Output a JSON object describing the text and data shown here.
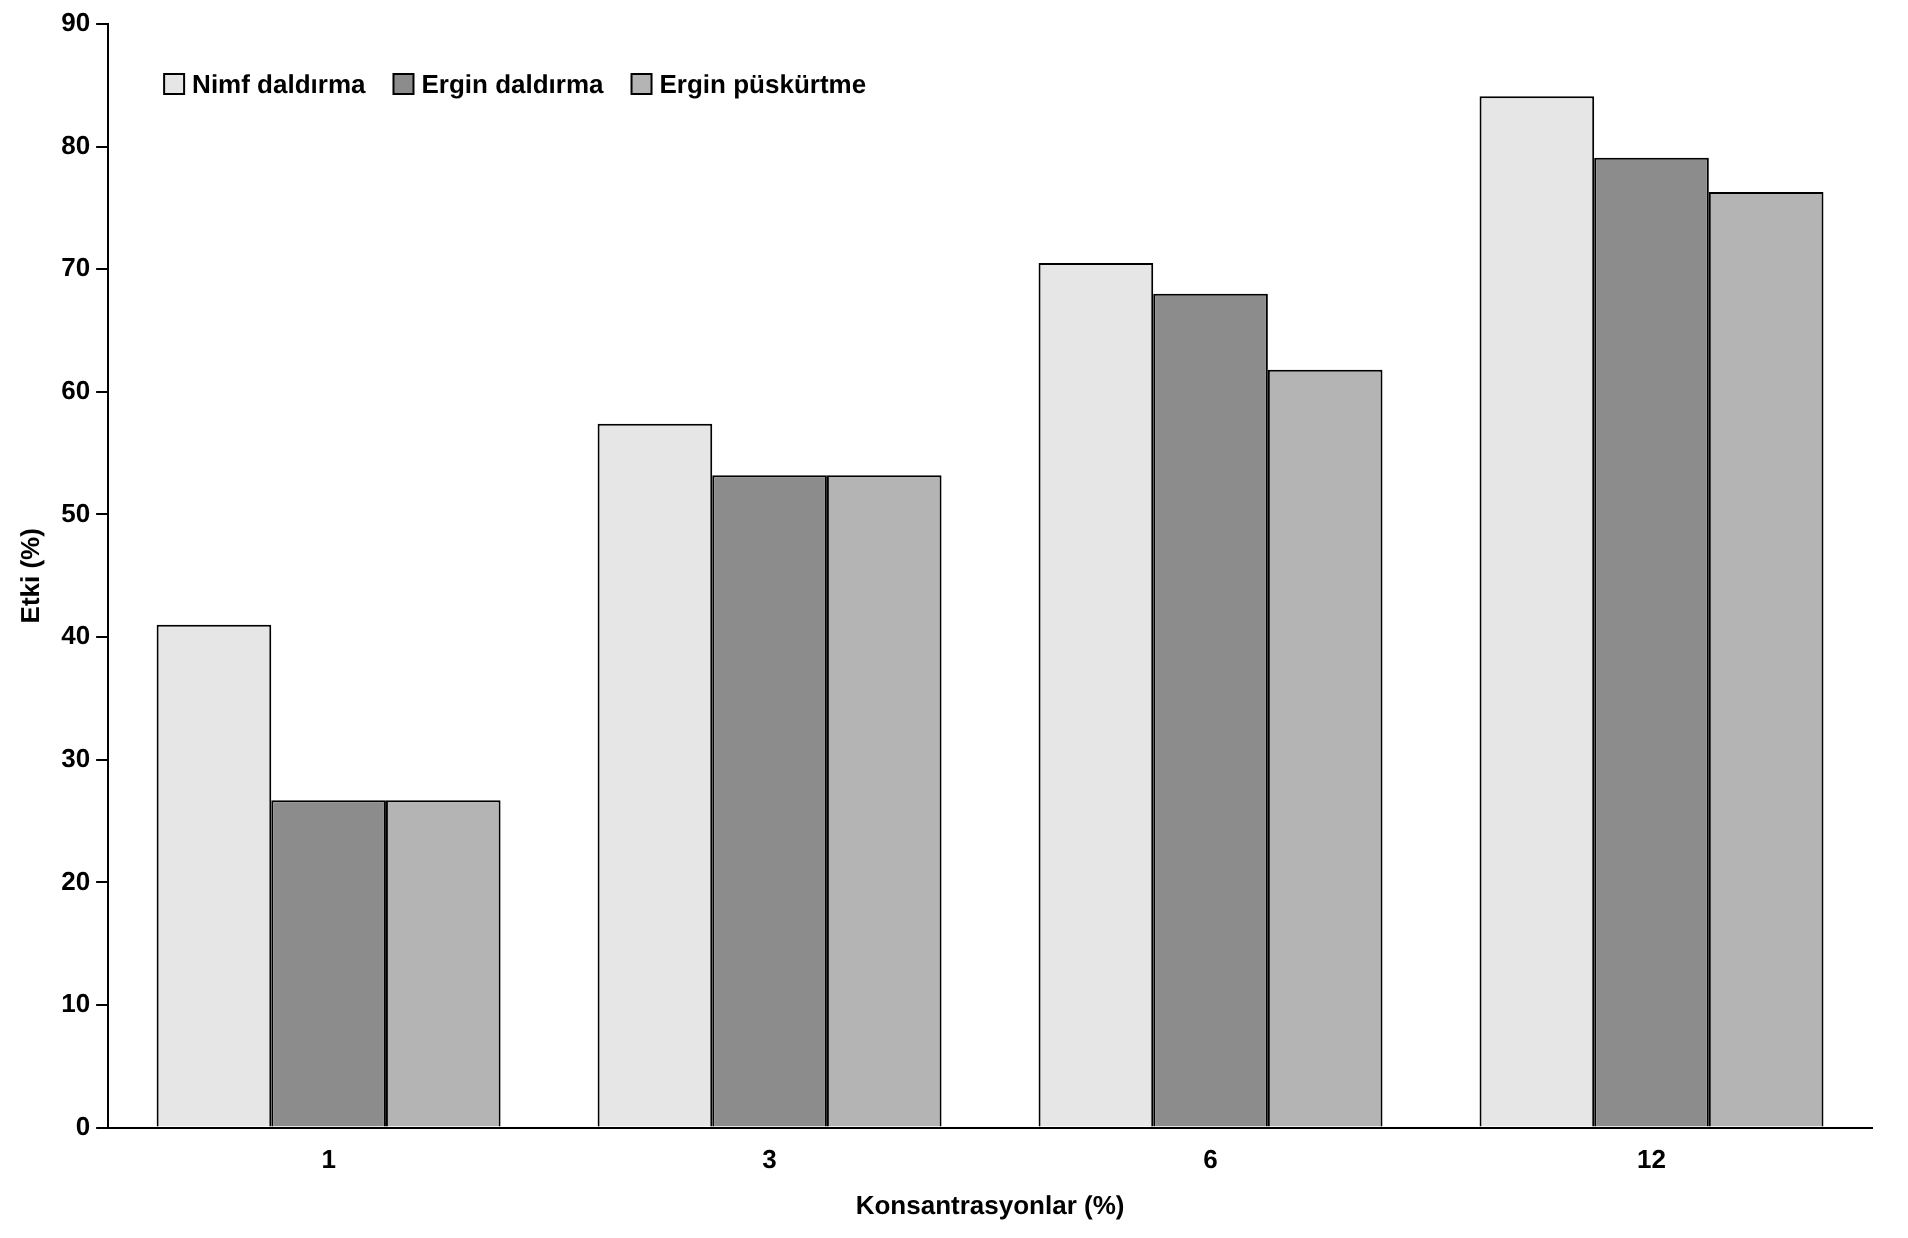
{
  "chart_data": {
    "type": "bar",
    "xlabel": "Konsantrasyonlar (%)",
    "ylabel": "Etki (%)",
    "categories": [
      "1",
      "3",
      "6",
      "12"
    ],
    "series": [
      {
        "name": "Nimf daldırma",
        "color": "#e6e6e6",
        "values": [
          41,
          57.4,
          70.5,
          84.1
        ]
      },
      {
        "name": "Ergin daldırma",
        "color": "#8c8c8c",
        "values": [
          26.7,
          53.2,
          68,
          79.1
        ]
      },
      {
        "name": "Ergin püskürtme",
        "color": "#b4b4b4",
        "values": [
          26.7,
          53.2,
          61.8,
          76.3
        ]
      }
    ],
    "ylim": [
      0,
      90
    ],
    "yticks": [
      0,
      10,
      20,
      30,
      40,
      50,
      60,
      70,
      80,
      90
    ],
    "grid": false,
    "legend": "top left"
  }
}
